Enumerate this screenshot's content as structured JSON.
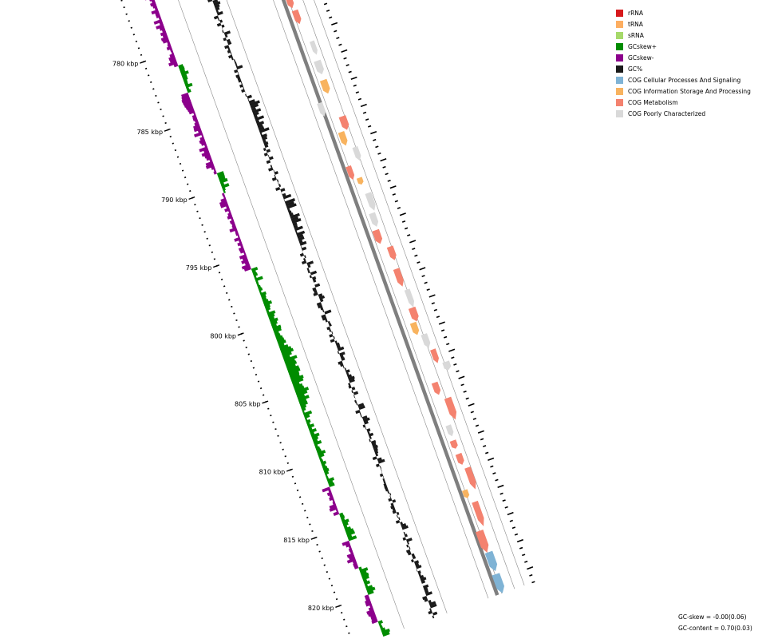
{
  "legend": [
    {
      "label": "rRNA",
      "color": "#d7191c"
    },
    {
      "label": "tRNA",
      "color": "#fdae61"
    },
    {
      "label": "sRNA",
      "color": "#a6d96a"
    },
    {
      "label": "GCskew+",
      "color": "#008c00"
    },
    {
      "label": "GCskew-",
      "color": "#8c008c"
    },
    {
      "label": "GC%",
      "color": "#1a1a1a"
    },
    {
      "label": "COG Cellular Processes And Signaling",
      "color": "#7fb3d5"
    },
    {
      "label": "COG Information Storage And Processing",
      "color": "#f8b35f"
    },
    {
      "label": "COG Metabolism",
      "color": "#f4826f"
    },
    {
      "label": "COG Poorly Characterized",
      "color": "#d9d9d9"
    }
  ],
  "ticks": [
    {
      "kbp": 780,
      "label": "780 kbp"
    },
    {
      "kbp": 785,
      "label": "785 kbp"
    },
    {
      "kbp": 790,
      "label": "790 kbp"
    },
    {
      "kbp": 795,
      "label": "795 kbp"
    },
    {
      "kbp": 800,
      "label": "800 kbp"
    },
    {
      "kbp": 805,
      "label": "805 kbp"
    },
    {
      "kbp": 810,
      "label": "810 kbp"
    },
    {
      "kbp": 815,
      "label": "815 kbp"
    },
    {
      "kbp": 820,
      "label": "820 kbp"
    }
  ],
  "stats": {
    "gc_skew": "GC-skew = -0.00(0.06)",
    "gc_content": "GC-content = 0.70(0.03)"
  }
}
